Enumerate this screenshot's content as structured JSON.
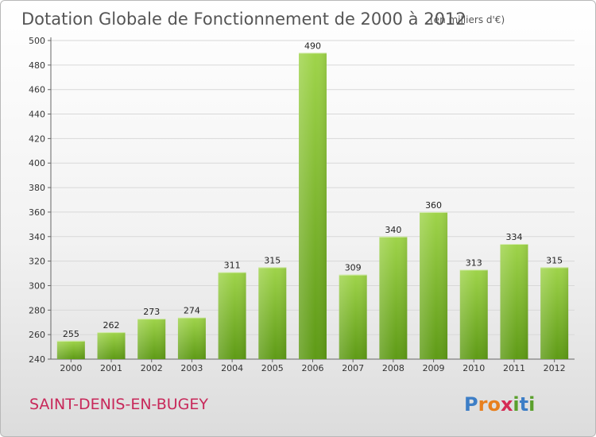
{
  "title": "Dotation Globale de Fonctionnement de 2000 à 2012",
  "unit": "(en milliers d'€)",
  "commune": "SAINT-DENIS-EN-BUGEY",
  "logo": {
    "letters": [
      "P",
      "r",
      "o",
      "x",
      "i",
      "t",
      "i"
    ],
    "colors": [
      "#3d7ec6",
      "#e8801e",
      "#e8801e",
      "#d52b55",
      "#5aa02c",
      "#3d7ec6",
      "#5aa02c"
    ]
  },
  "colors": {
    "bar_top": "#9fd44a",
    "bar_bottom": "#5e9a16",
    "grid": "#d8d8d8",
    "commune": "#c8285a"
  },
  "chart_data": {
    "type": "bar",
    "categories": [
      "2000",
      "2001",
      "2002",
      "2003",
      "2004",
      "2005",
      "2006",
      "2007",
      "2008",
      "2009",
      "2010",
      "2011",
      "2012"
    ],
    "values": [
      255,
      262,
      273,
      274,
      311,
      315,
      490,
      309,
      340,
      360,
      313,
      334,
      315
    ],
    "ylim": [
      240,
      500
    ],
    "yticks": [
      240,
      260,
      280,
      300,
      320,
      340,
      360,
      380,
      400,
      420,
      440,
      460,
      480,
      500
    ],
    "grid": true,
    "xlabel": "",
    "ylabel": ""
  }
}
